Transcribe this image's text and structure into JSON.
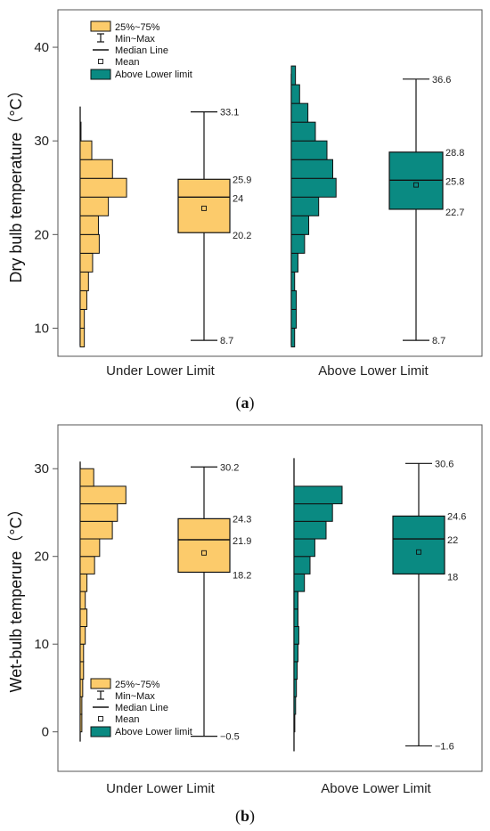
{
  "chart_data": [
    {
      "type": "box",
      "caption_letter": "a",
      "ylabel": "Dry bulb temperature（°C）",
      "ylim": [
        7,
        44
      ],
      "yticks": [
        10,
        20,
        30,
        40
      ],
      "categories": [
        "Under Lower Limit",
        "Above Lower Limit"
      ],
      "legend": {
        "placement": "top-left",
        "entries": [
          "25%~75%",
          "Min~Max",
          "Median Line",
          "Mean",
          "Above Lower limit"
        ]
      },
      "series": [
        {
          "category": "Under Lower Limit",
          "color": "#FCCB6B",
          "min": 8.7,
          "q1": 20.2,
          "median": 24,
          "q3": 25.9,
          "max": 33.1,
          "mean": 22.8,
          "labels": {
            "max": "33.1",
            "q3": "25.9",
            "median": "24",
            "q1": "20.2",
            "min": "8.7"
          },
          "histogram": {
            "bin_edges": [
              8,
              10,
              12,
              14,
              16,
              18,
              20,
              22,
              24,
              26,
              28,
              30,
              32
            ],
            "lengths": [
              0.5,
              0.5,
              0.8,
              1,
              1.5,
              2.3,
              2.2,
              3.4,
              5.6,
              3.9,
              1.4,
              0.1
            ]
          }
        },
        {
          "category": "Above Lower Limit",
          "color": "#0A8A82",
          "min": 8.7,
          "q1": 22.7,
          "median": 25.8,
          "q3": 28.8,
          "max": 36.6,
          "mean": 25.3,
          "labels": {
            "max": "36.6",
            "q3": "28.8",
            "median": "25.8",
            "q1": "22.7",
            "min": "8.7"
          },
          "histogram": {
            "bin_edges": [
              8,
              10,
              12,
              14,
              16,
              18,
              20,
              22,
              24,
              26,
              28,
              30,
              32,
              34,
              36,
              38
            ],
            "lengths": [
              0.4,
              0.6,
              0.6,
              0.4,
              0.8,
              1.6,
              2.1,
              3.3,
              5.4,
              5.0,
              4.3,
              2.9,
              2.0,
              1.0,
              0.5
            ]
          }
        }
      ]
    },
    {
      "type": "box",
      "caption_letter": "b",
      "ylabel": "Wet-bulb temperure（°C）",
      "ylim": [
        -4.5,
        35
      ],
      "yticks": [
        0,
        10,
        20,
        30
      ],
      "categories": [
        "Under Lower Limit",
        "Above Lower Limit"
      ],
      "legend": {
        "placement": "bottom-left",
        "entries": [
          "25%~75%",
          "Min~Max",
          "Median Line",
          "Mean",
          "Above Lower limit"
        ]
      },
      "series": [
        {
          "category": "Under Lower Limit",
          "color": "#FCCB6B",
          "min": -0.5,
          "q1": 18.2,
          "median": 21.9,
          "q3": 24.3,
          "max": 30.2,
          "mean": 20.4,
          "labels": {
            "max": "30.2",
            "q3": "24.3",
            "median": "21.9",
            "q1": "18.2",
            "min": "−0.5"
          },
          "histogram": {
            "bin_edges": [
              0,
              2,
              4,
              6,
              8,
              10,
              12,
              14,
              16,
              18,
              20,
              22,
              24,
              26,
              28,
              30
            ],
            "lengths": [
              0.2,
              0.2,
              0.3,
              0.4,
              0.4,
              0.6,
              0.8,
              0.6,
              0.8,
              1.7,
              2.3,
              3.8,
              4.4,
              5.4,
              1.6
            ]
          }
        },
        {
          "category": "Above Lower Limit",
          "color": "#0A8A82",
          "min": -1.6,
          "q1": 18,
          "median": 22,
          "q3": 24.6,
          "max": 30.6,
          "mean": 20.5,
          "labels": {
            "max": "30.6",
            "q3": "24.6",
            "median": "22",
            "q1": "18",
            "min": "−1.6"
          },
          "histogram": {
            "bin_edges": [
              0,
              2,
              4,
              6,
              8,
              10,
              12,
              14,
              16,
              18,
              20,
              22,
              24,
              26,
              28
            ],
            "lengths": [
              0.1,
              0.2,
              0.3,
              0.4,
              0.5,
              0.6,
              0.5,
              0.5,
              1.3,
              2.0,
              2.6,
              4.0,
              4.8,
              6.0
            ]
          }
        }
      ]
    }
  ]
}
